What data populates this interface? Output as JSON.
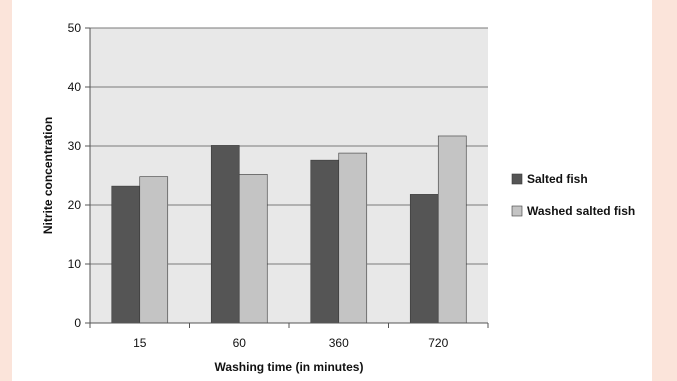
{
  "colors": {
    "page_background": "#fbe4da",
    "plot_background": "#e8e8e8",
    "gridline": "#7a7a7a",
    "salted_fish": "#555555",
    "washed_salted_fish": "#c4c4c4"
  },
  "chart_data": {
    "type": "bar",
    "title": "",
    "xlabel": "Washing time (in minutes)",
    "ylabel": "Nitrite concentration",
    "categories": [
      "15",
      "60",
      "360",
      "720"
    ],
    "ylim": [
      0,
      50
    ],
    "yticks": [
      0,
      10,
      20,
      30,
      40,
      50
    ],
    "grid": true,
    "legend_position": "right",
    "series": [
      {
        "name": "Salted fish",
        "values": [
          23.2,
          30.1,
          27.6,
          21.8
        ]
      },
      {
        "name": "Washed salted fish",
        "values": [
          24.8,
          25.2,
          28.8,
          31.7
        ]
      }
    ]
  }
}
